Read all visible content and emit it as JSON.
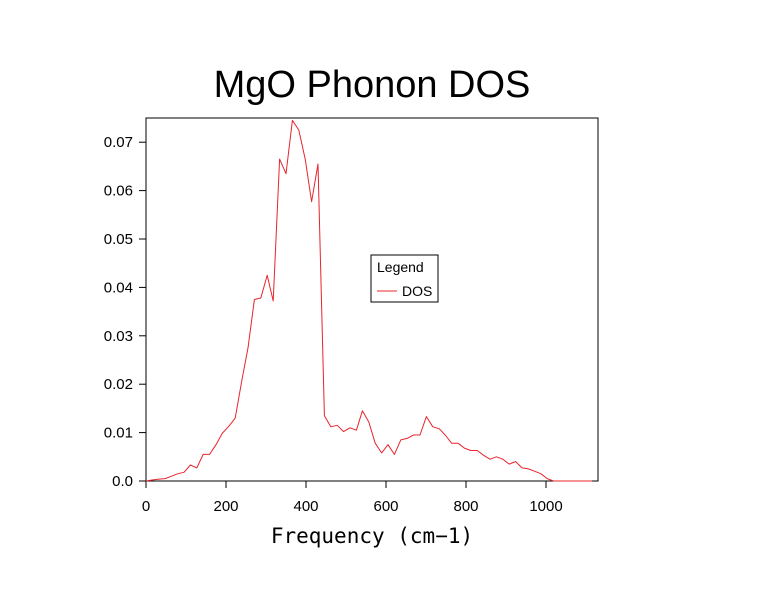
{
  "chart_data": {
    "type": "line",
    "title": "MgO Phonon DOS",
    "xlabel": "Frequency (cm−1)",
    "ylabel": "",
    "xlim": [
      0,
      1130
    ],
    "ylim": [
      0,
      0.075
    ],
    "x_ticks": [
      0,
      200,
      400,
      600,
      800,
      1000
    ],
    "x_tick_labels": [
      "0",
      "200",
      "400",
      "600",
      "800",
      "1000"
    ],
    "y_ticks": [
      0,
      0.01,
      0.02,
      0.03,
      0.04,
      0.05,
      0.06,
      0.07
    ],
    "y_tick_labels": [
      "0.0",
      "0.01",
      "0.02",
      "0.03",
      "0.04",
      "0.05",
      "0.06",
      "0.07"
    ],
    "grid": false,
    "legend": {
      "title": "Legend",
      "placement": "center-right"
    },
    "series": [
      {
        "name": "DOS",
        "color": "#e8242c",
        "x": [
          0,
          15,
          32,
          48,
          64,
          80,
          95,
          111,
          127,
          143,
          159,
          175,
          191,
          207,
          223,
          239,
          255,
          271,
          287,
          303,
          318,
          334,
          350,
          366,
          382,
          398,
          414,
          430,
          446,
          462,
          478,
          494,
          510,
          526,
          541,
          557,
          573,
          589,
          605,
          621,
          637,
          653,
          669,
          685,
          701,
          717,
          733,
          749,
          764,
          780,
          796,
          812,
          828,
          844,
          860,
          876,
          892,
          908,
          924,
          940,
          956,
          972,
          987,
          1003,
          1019,
          1035,
          1051,
          1067,
          1083,
          1099,
          1115
        ],
        "y": [
          0.0,
          0.0002,
          0.0004,
          0.0005,
          0.001,
          0.0015,
          0.0018,
          0.0033,
          0.0027,
          0.0055,
          0.0055,
          0.0075,
          0.0099,
          0.0113,
          0.013,
          0.0205,
          0.0275,
          0.0375,
          0.0378,
          0.0425,
          0.0372,
          0.0665,
          0.0635,
          0.0745,
          0.0725,
          0.0665,
          0.0577,
          0.0655,
          0.0135,
          0.0112,
          0.0115,
          0.0102,
          0.011,
          0.0105,
          0.0145,
          0.0122,
          0.0078,
          0.0058,
          0.0075,
          0.0055,
          0.0085,
          0.0088,
          0.0095,
          0.0095,
          0.0133,
          0.0112,
          0.0108,
          0.0094,
          0.0078,
          0.0078,
          0.0068,
          0.0063,
          0.0063,
          0.0053,
          0.0045,
          0.005,
          0.0045,
          0.0035,
          0.004,
          0.0027,
          0.0025,
          0.002,
          0.0015,
          0.0005,
          0.0,
          0.0,
          0.0,
          0.0,
          0.0,
          0.0,
          0.0
        ]
      }
    ]
  }
}
